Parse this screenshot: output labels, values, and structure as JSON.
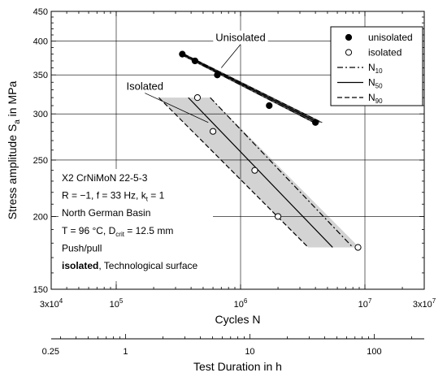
{
  "chart_data": {
    "type": "scatter",
    "xlabel": "Cycles N",
    "ylabel_main": "Stress amplitude S",
    "ylabel_sub": "a",
    "ylabel_tail": " in MPa",
    "x_scale": "log",
    "y_scale": "log",
    "xlim": [
      30000,
      30000000
    ],
    "ylim": [
      150,
      450
    ],
    "grid": true,
    "legend_position": "top-right",
    "x_ticks": [
      {
        "value": 30000,
        "base": "3x10",
        "exp": "4"
      },
      {
        "value": 100000,
        "base": "10",
        "exp": "5"
      },
      {
        "value": 1000000,
        "base": "10",
        "exp": "6"
      },
      {
        "value": 10000000,
        "base": "10",
        "exp": "7"
      },
      {
        "value": 30000000,
        "base": "3x10",
        "exp": "7"
      }
    ],
    "y_ticks": [
      {
        "value": 150,
        "label": "150"
      },
      {
        "value": 200,
        "label": "200"
      },
      {
        "value": 250,
        "label": "250"
      },
      {
        "value": 300,
        "label": "300"
      },
      {
        "value": 350,
        "label": "350"
      },
      {
        "value": 400,
        "label": "400"
      },
      {
        "value": 450,
        "label": "450"
      }
    ],
    "secondary_axis": {
      "label": "Test Duration in h",
      "ticks": [
        {
          "value": 0.25,
          "label": "0.25"
        },
        {
          "value": 1,
          "label": "1"
        },
        {
          "value": 10,
          "label": "10"
        },
        {
          "value": 100,
          "label": "100"
        }
      ]
    },
    "series": [
      {
        "name": "unisolated",
        "marker": "filled-circle",
        "points": [
          {
            "x": 340000,
            "y": 380
          },
          {
            "x": 430000,
            "y": 370
          },
          {
            "x": 650000,
            "y": 350
          },
          {
            "x": 1700000,
            "y": 310
          },
          {
            "x": 4000000,
            "y": 290
          }
        ]
      },
      {
        "name": "isolated",
        "marker": "open-circle",
        "points": [
          {
            "x": 450000,
            "y": 320
          },
          {
            "x": 600000,
            "y": 280
          },
          {
            "x": 1300000,
            "y": 240
          },
          {
            "x": 2000000,
            "y": 200
          },
          {
            "x": 8800000,
            "y": 177
          }
        ]
      }
    ],
    "regression_lines": [
      {
        "group": "unisolated",
        "line": "N10",
        "style": "dash-dot",
        "from": {
          "x": 330000,
          "y": 380
        },
        "to": {
          "x": 3900000,
          "y": 290
        }
      },
      {
        "group": "unisolated",
        "line": "N50",
        "style": "solid",
        "from": {
          "x": 340000,
          "y": 380
        },
        "to": {
          "x": 4200000,
          "y": 290
        }
      },
      {
        "group": "unisolated",
        "line": "N90",
        "style": "dashed",
        "from": {
          "x": 350000,
          "y": 380
        },
        "to": {
          "x": 4500000,
          "y": 290
        }
      },
      {
        "group": "isolated",
        "line": "N10",
        "style": "dash-dot",
        "from": {
          "x": 570000,
          "y": 320
        },
        "to": {
          "x": 8000000,
          "y": 177
        }
      },
      {
        "group": "isolated",
        "line": "N50",
        "style": "solid",
        "from": {
          "x": 380000,
          "y": 320
        },
        "to": {
          "x": 5500000,
          "y": 177
        }
      },
      {
        "group": "isolated",
        "line": "N90",
        "style": "dashed",
        "from": {
          "x": 220000,
          "y": 320
        },
        "to": {
          "x": 3500000,
          "y": 177
        }
      }
    ],
    "scatter_bands": [
      {
        "group": "unisolated",
        "polygon": [
          [
            320000,
            380
          ],
          [
            360000,
            380
          ],
          [
            4600000,
            290
          ],
          [
            3800000,
            290
          ]
        ],
        "color": "#505050"
      },
      {
        "group": "isolated",
        "polygon": [
          [
            220000,
            320
          ],
          [
            570000,
            320
          ],
          [
            9000000,
            177
          ],
          [
            3500000,
            177
          ]
        ],
        "color": "#d3d3d3"
      }
    ],
    "annotations": [
      {
        "text": "Unisolated",
        "at": {
          "x": 1000000,
          "y": 400
        },
        "arrow_to": {
          "x": 700000,
          "y": 360
        }
      },
      {
        "text": "Isolated",
        "at": {
          "x": 170000,
          "y": 330
        },
        "arrow_to": {
          "x": 550000,
          "y": 290
        }
      }
    ],
    "legend": [
      {
        "label": "unisolated",
        "symbol": "filled-circle"
      },
      {
        "label": "isolated",
        "symbol": "open-circle"
      },
      {
        "label": "N",
        "sub": "10",
        "symbol": "dash-dot"
      },
      {
        "label": "N",
        "sub": "50",
        "symbol": "solid"
      },
      {
        "label": "N",
        "sub": "90",
        "symbol": "dashed"
      }
    ],
    "info_lines": [
      {
        "parts": [
          {
            "t": "X2 CrNiMoN 22-5-3"
          }
        ]
      },
      {
        "parts": [
          {
            "t": "R = −1, f = 33 Hz, k"
          },
          {
            "t": "t",
            "sub": true
          },
          {
            "t": " = 1"
          }
        ]
      },
      {
        "parts": [
          {
            "t": "North German Basin"
          }
        ]
      },
      {
        "parts": [
          {
            "t": "T = 96 °C, D"
          },
          {
            "t": "crit",
            "sub": true
          },
          {
            "t": " = 12.5 mm"
          }
        ]
      },
      {
        "parts": [
          {
            "t": "Push/pull"
          }
        ]
      },
      {
        "parts": [
          {
            "t": "isolated",
            "bold": true
          },
          {
            "t": ", Technological surface"
          }
        ]
      }
    ]
  }
}
